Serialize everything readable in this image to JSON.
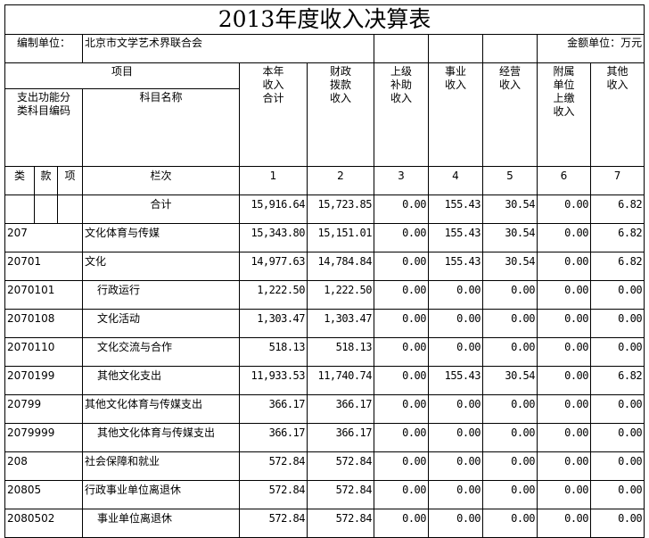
{
  "title": "2013年度收入决算表",
  "unit_label": "编制单位：",
  "unit_name": "北京市文学艺术界联合会",
  "amount_unit": "金额单位：万元",
  "headers": {
    "item": "项目",
    "code": "支出功能分类科目编码",
    "name": "科目名称",
    "columns": [
      "本年收入合计",
      "财政拨款收入",
      "上级补助收入",
      "事业收入",
      "经营收入",
      "附属单位上缴收入",
      "其他收入"
    ],
    "lei": "类",
    "kuan": "款",
    "xiang": "项",
    "lanci": "栏次",
    "col_numbers": [
      "1",
      "2",
      "3",
      "4",
      "5",
      "6",
      "7"
    ]
  },
  "total": {
    "label": "合计",
    "values": [
      "15,916.64",
      "15,723.85",
      "0.00",
      "155.43",
      "30.54",
      "0.00",
      "6.82"
    ]
  },
  "rows": [
    {
      "code": "207",
      "name": "文化体育与传媒",
      "indent": false,
      "values": [
        "15,343.80",
        "15,151.01",
        "0.00",
        "155.43",
        "30.54",
        "0.00",
        "6.82"
      ]
    },
    {
      "code": "20701",
      "name": "文化",
      "indent": false,
      "values": [
        "14,977.63",
        "14,784.84",
        "0.00",
        "155.43",
        "30.54",
        "0.00",
        "6.82"
      ]
    },
    {
      "code": "2070101",
      "name": "行政运行",
      "indent": true,
      "values": [
        "1,222.50",
        "1,222.50",
        "0.00",
        "0.00",
        "0.00",
        "0.00",
        "0.00"
      ]
    },
    {
      "code": "2070108",
      "name": "文化活动",
      "indent": true,
      "values": [
        "1,303.47",
        "1,303.47",
        "0.00",
        "0.00",
        "0.00",
        "0.00",
        "0.00"
      ]
    },
    {
      "code": "2070110",
      "name": "文化交流与合作",
      "indent": true,
      "values": [
        "518.13",
        "518.13",
        "0.00",
        "0.00",
        "0.00",
        "0.00",
        "0.00"
      ]
    },
    {
      "code": "2070199",
      "name": "其他文化支出",
      "indent": true,
      "values": [
        "11,933.53",
        "11,740.74",
        "0.00",
        "155.43",
        "30.54",
        "0.00",
        "6.82"
      ]
    },
    {
      "code": "20799",
      "name": "其他文化体育与传媒支出",
      "indent": false,
      "values": [
        "366.17",
        "366.17",
        "0.00",
        "0.00",
        "0.00",
        "0.00",
        "0.00"
      ]
    },
    {
      "code": "2079999",
      "name": "其他文化体育与传媒支出",
      "indent": true,
      "values": [
        "366.17",
        "366.17",
        "0.00",
        "0.00",
        "0.00",
        "0.00",
        "0.00"
      ]
    },
    {
      "code": "208",
      "name": "社会保障和就业",
      "indent": false,
      "values": [
        "572.84",
        "572.84",
        "0.00",
        "0.00",
        "0.00",
        "0.00",
        "0.00"
      ]
    },
    {
      "code": "20805",
      "name": "行政事业单位离退休",
      "indent": false,
      "values": [
        "572.84",
        "572.84",
        "0.00",
        "0.00",
        "0.00",
        "0.00",
        "0.00"
      ]
    },
    {
      "code": "2080502",
      "name": "事业单位离退休",
      "indent": true,
      "values": [
        "572.84",
        "572.84",
        "0.00",
        "0.00",
        "0.00",
        "0.00",
        "0.00"
      ]
    }
  ]
}
